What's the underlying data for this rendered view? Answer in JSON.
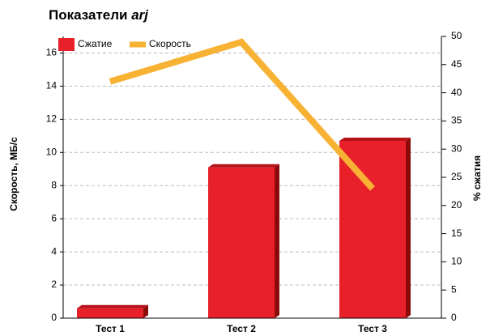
{
  "chart_data": {
    "type": "bar_line",
    "title": "Показатели",
    "title_emphasis": "arj",
    "categories": [
      "Тест 1",
      "Тест 2",
      "Тест 3"
    ],
    "series": [
      {
        "name": "Сжатие",
        "color": "#e8202a",
        "type": "bar",
        "axis": "y",
        "values": [
          0.6,
          9.1,
          10.7
        ]
      },
      {
        "name": "Скорость",
        "color": "#f7b234",
        "type": "line",
        "axis": "y2",
        "values": [
          42,
          49,
          23
        ]
      }
    ],
    "y_label": "Скорость, МБ/с",
    "y2_label": "% сжатия",
    "ylim": [
      0,
      17
    ],
    "yticks": [
      0,
      2,
      4,
      6,
      8,
      10,
      12,
      14,
      16
    ],
    "y2lim": [
      0,
      50
    ],
    "y2ticks": [
      0,
      5,
      10,
      15,
      20,
      25,
      30,
      35,
      40,
      45,
      50
    ],
    "grid": true,
    "legend": "top-left"
  }
}
